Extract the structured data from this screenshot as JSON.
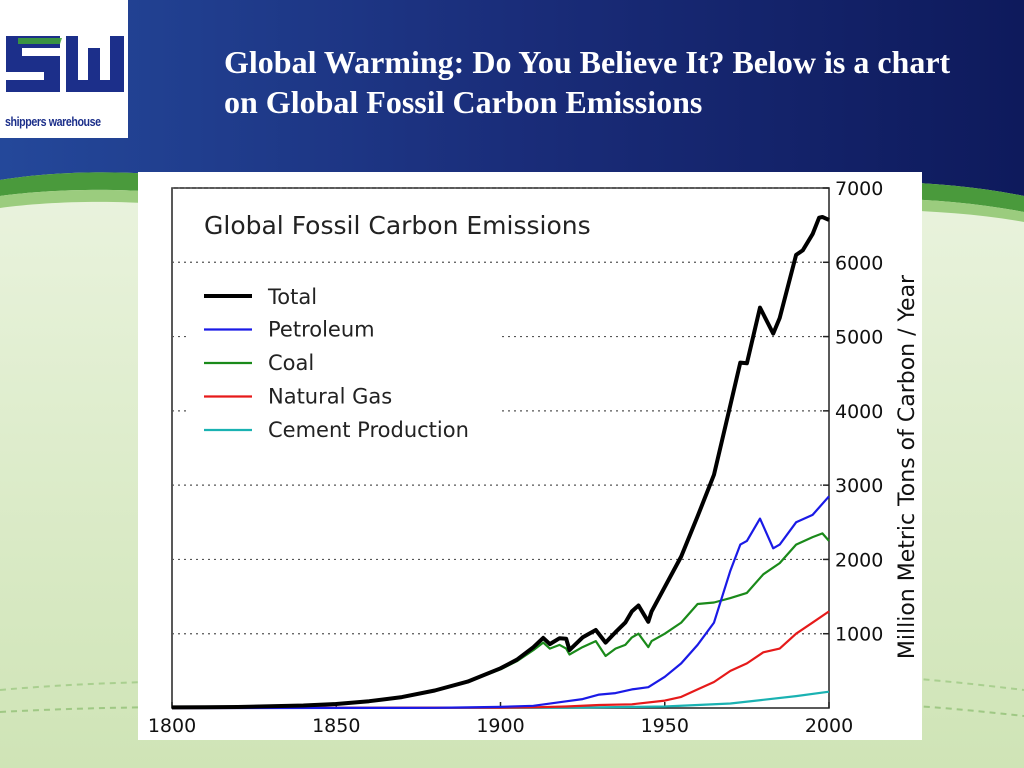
{
  "slide": {
    "title": "Global Warming: Do You Believe It? Below is a chart on Global Fossil Carbon Emissions"
  },
  "logo": {
    "mark": "SW",
    "text": "shippers warehouse",
    "colors": {
      "blue": "#1c2f8a",
      "green": "#3fa535"
    }
  },
  "colors": {
    "header_dark": "#0e1a5c",
    "header_mid": "#2a4a9e",
    "stripe_green": "#4a9a3c",
    "background": "#e8f2dc"
  },
  "chart_data": {
    "type": "line",
    "title": "Global Fossil Carbon Emissions",
    "xlabel": "",
    "ylabel": "Million Metric Tons of Carbon / Year",
    "xlim": [
      1800,
      2000
    ],
    "ylim": [
      0,
      7000
    ],
    "x_ticks": [
      1800,
      1850,
      1900,
      1950,
      2000
    ],
    "y_ticks": [
      1000,
      2000,
      3000,
      4000,
      5000,
      6000,
      7000
    ],
    "y_axis_side": "right",
    "grid": "horizontal dotted",
    "legend_position": "top-left",
    "series": [
      {
        "name": "Total",
        "color": "#000000",
        "x": [
          1800,
          1810,
          1820,
          1830,
          1840,
          1850,
          1860,
          1870,
          1880,
          1890,
          1900,
          1905,
          1910,
          1913,
          1915,
          1918,
          1920,
          1921,
          1925,
          1929,
          1932,
          1935,
          1938,
          1940,
          1942,
          1945,
          1946,
          1950,
          1955,
          1960,
          1965,
          1970,
          1973,
          1975,
          1979,
          1983,
          1985,
          1990,
          1992,
          1995,
          1997,
          1998,
          2000
        ],
        "y": [
          8,
          10,
          14,
          24,
          33,
          54,
          91,
          147,
          236,
          356,
          534,
          650,
          819,
          943,
          860,
          940,
          932,
          780,
          950,
          1050,
          880,
          1020,
          1150,
          1300,
          1380,
          1160,
          1300,
          1630,
          2040,
          2580,
          3140,
          4080,
          4650,
          4640,
          5390,
          5040,
          5250,
          6100,
          6160,
          6380,
          6600,
          6610,
          6570
        ]
      },
      {
        "name": "Petroleum",
        "color": "#1a1ae6",
        "x": [
          1800,
          1870,
          1880,
          1890,
          1900,
          1910,
          1920,
          1925,
          1930,
          1935,
          1940,
          1945,
          1950,
          1955,
          1960,
          1965,
          1970,
          1973,
          1975,
          1979,
          1983,
          1985,
          1990,
          1995,
          2000
        ],
        "y": [
          0,
          1,
          3,
          8,
          15,
          30,
          90,
          120,
          180,
          200,
          250,
          280,
          420,
          600,
          850,
          1150,
          1850,
          2200,
          2250,
          2550,
          2150,
          2200,
          2500,
          2600,
          2850
        ]
      },
      {
        "name": "Coal",
        "color": "#1a8a1a",
        "x": [
          1800,
          1810,
          1820,
          1830,
          1840,
          1850,
          1860,
          1870,
          1880,
          1890,
          1900,
          1905,
          1910,
          1913,
          1915,
          1918,
          1920,
          1921,
          1925,
          1929,
          1932,
          1935,
          1938,
          1940,
          1942,
          1945,
          1946,
          1950,
          1955,
          1960,
          1965,
          1970,
          1975,
          1980,
          1985,
          1990,
          1995,
          1998,
          2000
        ],
        "y": [
          8,
          10,
          14,
          24,
          33,
          54,
          91,
          147,
          235,
          350,
          520,
          630,
          780,
          880,
          800,
          850,
          800,
          720,
          820,
          900,
          700,
          800,
          850,
          950,
          1000,
          820,
          900,
          1000,
          1150,
          1400,
          1420,
          1480,
          1550,
          1800,
          1950,
          2200,
          2300,
          2350,
          2250
        ]
      },
      {
        "name": "Natural Gas",
        "color": "#e61a1a",
        "x": [
          1800,
          1900,
          1910,
          1920,
          1930,
          1940,
          1950,
          1955,
          1960,
          1965,
          1970,
          1975,
          1980,
          1985,
          1990,
          1995,
          2000
        ],
        "y": [
          0,
          5,
          10,
          20,
          40,
          50,
          100,
          150,
          250,
          350,
          500,
          600,
          750,
          800,
          1000,
          1150,
          1300
        ]
      },
      {
        "name": "Cement Production",
        "color": "#1ab2b2",
        "x": [
          1800,
          1920,
          1930,
          1940,
          1950,
          1960,
          1970,
          1980,
          1990,
          2000
        ],
        "y": [
          0,
          5,
          10,
          15,
          20,
          40,
          60,
          110,
          160,
          220
        ]
      }
    ]
  }
}
